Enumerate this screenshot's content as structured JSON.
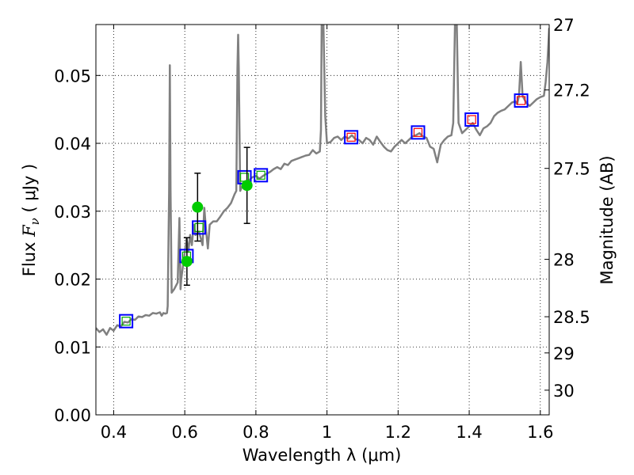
{
  "chart_data": {
    "type": "line",
    "title": "",
    "xlabel": "Wavelength  λ (μm)",
    "ylabel": "Flux  F_ν  ( μJy )",
    "ylabel_parts": {
      "pre": "Flux  ",
      "var": "F",
      "sub": "ν",
      "post": "  (  μJy )"
    },
    "y2label": "Magnitude (AB)",
    "xlim": [
      0.35,
      1.625
    ],
    "ylim": [
      0.0,
      0.0575
    ],
    "grid": true,
    "x_ticks": [
      {
        "value": 0.4,
        "label": "0.4"
      },
      {
        "value": 0.6,
        "label": "0.6"
      },
      {
        "value": 0.8,
        "label": "0.8"
      },
      {
        "value": 1.0,
        "label": "1"
      },
      {
        "value": 1.2,
        "label": "1.2"
      },
      {
        "value": 1.4,
        "label": "1.4"
      },
      {
        "value": 1.6,
        "label": "1.6"
      }
    ],
    "y_ticks": [
      {
        "value": 0.0,
        "label": "0.00"
      },
      {
        "value": 0.01,
        "label": "0.01"
      },
      {
        "value": 0.02,
        "label": "0.02"
      },
      {
        "value": 0.03,
        "label": "0.03"
      },
      {
        "value": 0.04,
        "label": "0.04"
      },
      {
        "value": 0.05,
        "label": "0.05"
      }
    ],
    "y2_ticks": [
      {
        "value": 27.0,
        "label": "27"
      },
      {
        "value": 27.2,
        "label": "27.2"
      },
      {
        "value": 27.5,
        "label": "27.5"
      },
      {
        "value": 28.0,
        "label": "28"
      },
      {
        "value": 28.5,
        "label": "28.5"
      },
      {
        "value": 29.0,
        "label": "29"
      },
      {
        "value": 30.0,
        "label": "30"
      }
    ],
    "series": [
      {
        "kind": "spectrum",
        "color": "#808080",
        "points": [
          [
            0.35,
            0.0128
          ],
          [
            0.36,
            0.0122
          ],
          [
            0.37,
            0.0126
          ],
          [
            0.38,
            0.0118
          ],
          [
            0.39,
            0.0128
          ],
          [
            0.4,
            0.0124
          ],
          [
            0.41,
            0.0132
          ],
          [
            0.42,
            0.013
          ],
          [
            0.43,
            0.0137
          ],
          [
            0.44,
            0.0136
          ],
          [
            0.45,
            0.0141
          ],
          [
            0.46,
            0.014
          ],
          [
            0.47,
            0.0145
          ],
          [
            0.48,
            0.0144
          ],
          [
            0.49,
            0.0147
          ],
          [
            0.5,
            0.0146
          ],
          [
            0.51,
            0.015
          ],
          [
            0.52,
            0.0149
          ],
          [
            0.53,
            0.0151
          ],
          [
            0.535,
            0.0146
          ],
          [
            0.54,
            0.015
          ],
          [
            0.545,
            0.0149
          ],
          [
            0.55,
            0.015
          ],
          [
            0.552,
            0.016
          ],
          [
            0.556,
            0.033
          ],
          [
            0.558,
            0.0515
          ],
          [
            0.56,
            0.033
          ],
          [
            0.563,
            0.018
          ],
          [
            0.57,
            0.0185
          ],
          [
            0.58,
            0.0195
          ],
          [
            0.585,
            0.029
          ],
          [
            0.588,
            0.0185
          ],
          [
            0.59,
            0.02
          ],
          [
            0.6,
            0.024
          ],
          [
            0.605,
            0.026
          ],
          [
            0.61,
            0.024
          ],
          [
            0.615,
            0.0265
          ],
          [
            0.62,
            0.025
          ],
          [
            0.625,
            0.028
          ],
          [
            0.63,
            0.0265
          ],
          [
            0.64,
            0.027
          ],
          [
            0.65,
            0.025
          ],
          [
            0.655,
            0.0305
          ],
          [
            0.66,
            0.027
          ],
          [
            0.665,
            0.0245
          ],
          [
            0.67,
            0.028
          ],
          [
            0.68,
            0.0285
          ],
          [
            0.69,
            0.0285
          ],
          [
            0.7,
            0.0292
          ],
          [
            0.71,
            0.03
          ],
          [
            0.72,
            0.0305
          ],
          [
            0.73,
            0.0312
          ],
          [
            0.74,
            0.0325
          ],
          [
            0.745,
            0.033
          ],
          [
            0.748,
            0.051
          ],
          [
            0.75,
            0.056
          ],
          [
            0.752,
            0.051
          ],
          [
            0.756,
            0.033
          ],
          [
            0.76,
            0.0335
          ],
          [
            0.77,
            0.0342
          ],
          [
            0.78,
            0.0345
          ],
          [
            0.79,
            0.035
          ],
          [
            0.8,
            0.0352
          ],
          [
            0.81,
            0.0348
          ],
          [
            0.82,
            0.0352
          ],
          [
            0.83,
            0.0355
          ],
          [
            0.84,
            0.0358
          ],
          [
            0.85,
            0.0362
          ],
          [
            0.86,
            0.0365
          ],
          [
            0.87,
            0.0362
          ],
          [
            0.88,
            0.037
          ],
          [
            0.89,
            0.0368
          ],
          [
            0.9,
            0.0374
          ],
          [
            0.91,
            0.0376
          ],
          [
            0.92,
            0.0378
          ],
          [
            0.93,
            0.038
          ],
          [
            0.94,
            0.0382
          ],
          [
            0.95,
            0.0383
          ],
          [
            0.96,
            0.039
          ],
          [
            0.97,
            0.0385
          ],
          [
            0.98,
            0.0388
          ],
          [
            0.983,
            0.042
          ],
          [
            0.985,
            0.0575
          ],
          [
            0.99,
            0.0575
          ],
          [
            0.995,
            0.044
          ],
          [
            1.0,
            0.04
          ],
          [
            1.01,
            0.0402
          ],
          [
            1.02,
            0.0408
          ],
          [
            1.03,
            0.041
          ],
          [
            1.04,
            0.0405
          ],
          [
            1.05,
            0.041
          ],
          [
            1.06,
            0.0407
          ],
          [
            1.07,
            0.0412
          ],
          [
            1.08,
            0.0406
          ],
          [
            1.09,
            0.0405
          ],
          [
            1.1,
            0.04
          ],
          [
            1.11,
            0.0408
          ],
          [
            1.12,
            0.0405
          ],
          [
            1.13,
            0.0398
          ],
          [
            1.14,
            0.041
          ],
          [
            1.15,
            0.0402
          ],
          [
            1.16,
            0.0395
          ],
          [
            1.17,
            0.039
          ],
          [
            1.18,
            0.0388
          ],
          [
            1.19,
            0.0395
          ],
          [
            1.2,
            0.04
          ],
          [
            1.21,
            0.0405
          ],
          [
            1.22,
            0.04
          ],
          [
            1.23,
            0.0405
          ],
          [
            1.24,
            0.041
          ],
          [
            1.25,
            0.0412
          ],
          [
            1.26,
            0.0415
          ],
          [
            1.27,
            0.041
          ],
          [
            1.28,
            0.0408
          ],
          [
            1.29,
            0.0395
          ],
          [
            1.3,
            0.0392
          ],
          [
            1.31,
            0.0372
          ],
          [
            1.315,
            0.0385
          ],
          [
            1.32,
            0.0398
          ],
          [
            1.33,
            0.0405
          ],
          [
            1.34,
            0.041
          ],
          [
            1.35,
            0.0412
          ],
          [
            1.355,
            0.043
          ],
          [
            1.36,
            0.0575
          ],
          [
            1.365,
            0.0575
          ],
          [
            1.37,
            0.043
          ],
          [
            1.38,
            0.0415
          ],
          [
            1.39,
            0.042
          ],
          [
            1.4,
            0.0425
          ],
          [
            1.41,
            0.043
          ],
          [
            1.42,
            0.042
          ],
          [
            1.43,
            0.0412
          ],
          [
            1.44,
            0.0422
          ],
          [
            1.45,
            0.0425
          ],
          [
            1.46,
            0.043
          ],
          [
            1.47,
            0.044
          ],
          [
            1.48,
            0.0445
          ],
          [
            1.49,
            0.0448
          ],
          [
            1.5,
            0.045
          ],
          [
            1.51,
            0.0455
          ],
          [
            1.52,
            0.046
          ],
          [
            1.53,
            0.0462
          ],
          [
            1.535,
            0.0458
          ],
          [
            1.54,
            0.047
          ],
          [
            1.545,
            0.052
          ],
          [
            1.55,
            0.047
          ],
          [
            1.56,
            0.046
          ],
          [
            1.57,
            0.0455
          ],
          [
            1.58,
            0.046
          ],
          [
            1.59,
            0.0465
          ],
          [
            1.6,
            0.0468
          ],
          [
            1.61,
            0.047
          ],
          [
            1.615,
            0.049
          ],
          [
            1.62,
            0.052
          ],
          [
            1.625,
            0.057
          ]
        ]
      },
      {
        "kind": "model-photometry",
        "edge_color": "#0000ff",
        "inner_color": "#00aa00",
        "points": [
          [
            0.435,
            0.0138
          ],
          [
            0.605,
            0.0234
          ],
          [
            0.64,
            0.0276
          ],
          [
            0.768,
            0.035
          ],
          [
            0.814,
            0.0353
          ]
        ]
      },
      {
        "kind": "model-photometry",
        "edge_color": "#0000ff",
        "inner_color": "#ff0000",
        "points": [
          [
            1.068,
            0.0409
          ],
          [
            1.256,
            0.0416
          ],
          [
            1.407,
            0.0435
          ],
          [
            1.546,
            0.0463
          ]
        ]
      },
      {
        "kind": "observed",
        "color": "#00cc00",
        "points": [
          {
            "x": 0.606,
            "y": 0.0226,
            "err": [
              0.0035,
              0.0035
            ]
          },
          {
            "x": 0.636,
            "y": 0.0306,
            "err": [
              0.005,
              0.005
            ]
          },
          {
            "x": 0.775,
            "y": 0.0338,
            "err": [
              0.0056,
              0.0056
            ]
          }
        ]
      }
    ]
  }
}
